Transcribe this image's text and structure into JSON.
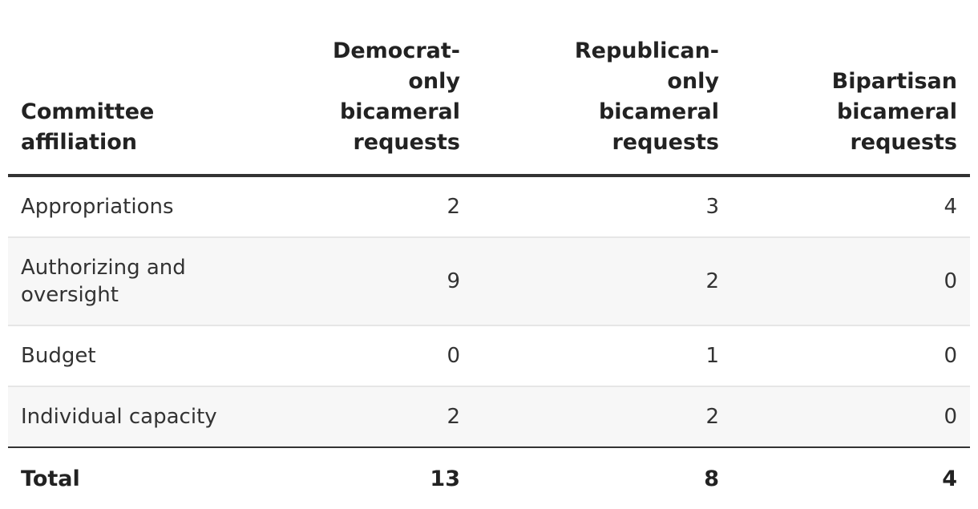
{
  "table": {
    "headers": [
      "Committee affiliation",
      "Democrat-only bicameral requests",
      "Republican-only bicameral requests",
      "Bipartisan bicameral requests"
    ],
    "rows": [
      [
        "Appropriations",
        "2",
        "3",
        "4"
      ],
      [
        "Authorizing and oversight",
        "9",
        "2",
        "0"
      ],
      [
        "Budget",
        "0",
        "1",
        "0"
      ],
      [
        "Individual capacity",
        "2",
        "2",
        "0"
      ]
    ],
    "total": [
      "Total",
      "13",
      "8",
      "4"
    ]
  }
}
